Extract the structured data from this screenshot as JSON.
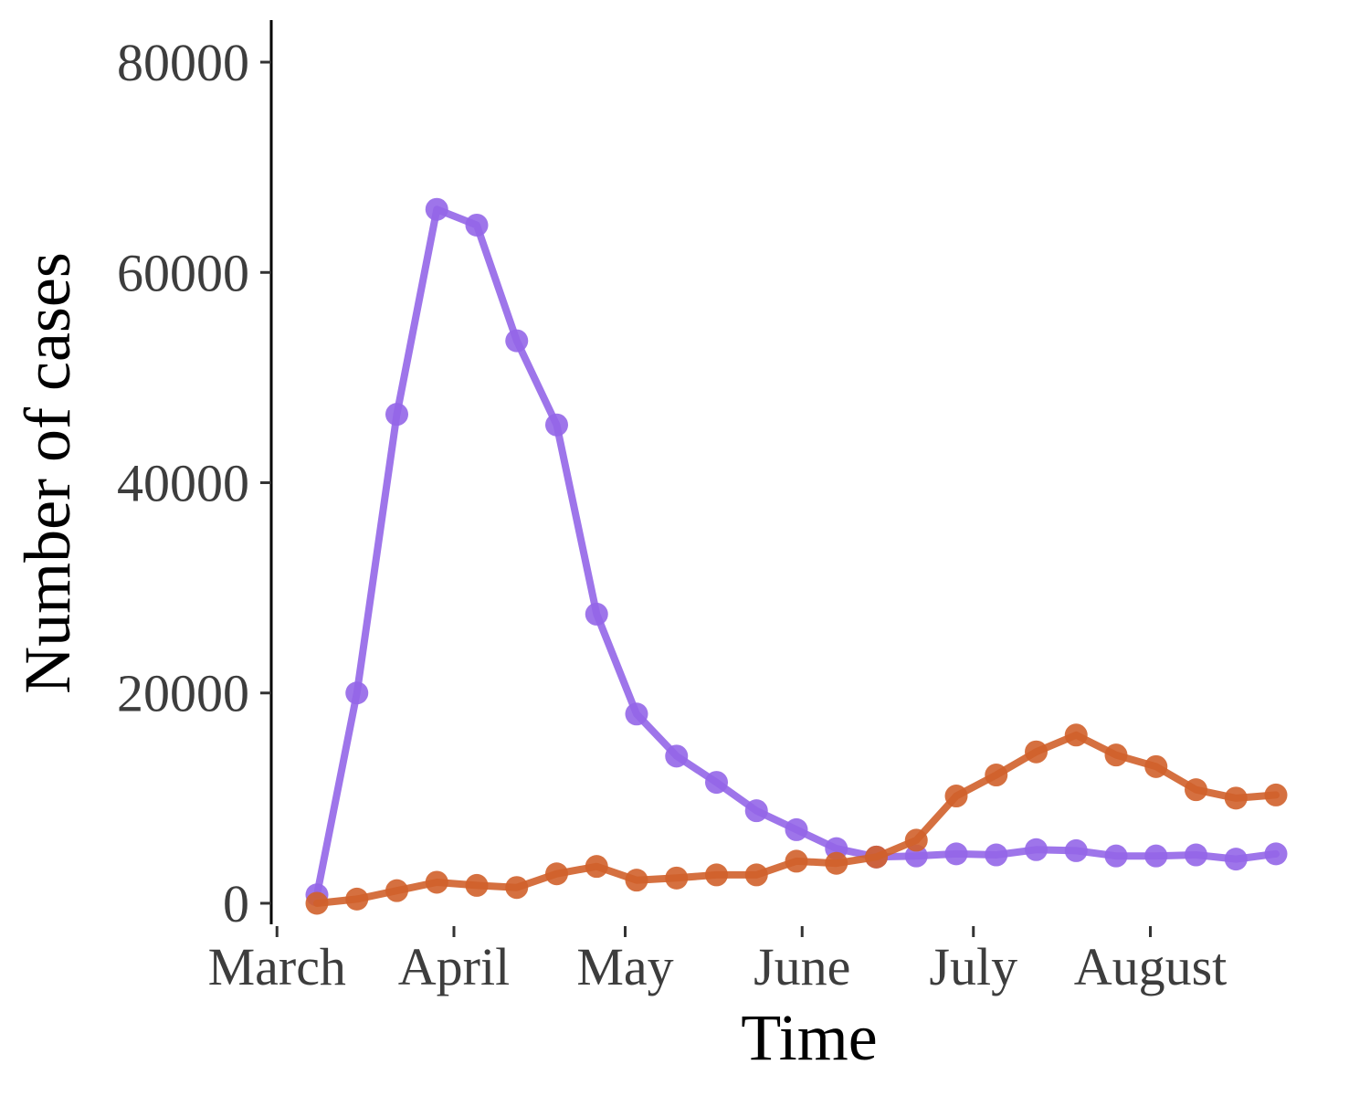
{
  "chart_data": {
    "type": "line",
    "title": "",
    "xlabel": "Time",
    "ylabel": "Number of cases",
    "x_axis": {
      "type": "date",
      "range": [
        "2020-02-29",
        "2020-08-31"
      ],
      "ticks": [
        {
          "label": "March",
          "date": "2020-03-01"
        },
        {
          "label": "April",
          "date": "2020-04-01"
        },
        {
          "label": "May",
          "date": "2020-05-01"
        },
        {
          "label": "June",
          "date": "2020-06-01"
        },
        {
          "label": "July",
          "date": "2020-07-01"
        },
        {
          "label": "August",
          "date": "2020-08-01"
        }
      ]
    },
    "y_axis": {
      "range": [
        -2000,
        84000
      ],
      "ticks": [
        0,
        20000,
        40000,
        60000,
        80000
      ]
    },
    "grid": false,
    "legend": "none",
    "x": [
      "2020-03-08",
      "2020-03-15",
      "2020-03-22",
      "2020-03-29",
      "2020-04-05",
      "2020-04-12",
      "2020-04-19",
      "2020-04-26",
      "2020-05-03",
      "2020-05-10",
      "2020-05-17",
      "2020-05-24",
      "2020-05-31",
      "2020-06-07",
      "2020-06-14",
      "2020-06-21",
      "2020-06-28",
      "2020-07-05",
      "2020-07-12",
      "2020-07-19",
      "2020-07-26",
      "2020-08-02",
      "2020-08-09",
      "2020-08-16",
      "2020-08-23"
    ],
    "series": [
      {
        "color": "#9466e8",
        "values": [
          800,
          20000,
          46500,
          66000,
          64500,
          53500,
          45500,
          27500,
          18000,
          14000,
          11500,
          8800,
          7000,
          5200,
          4400,
          4500,
          4700,
          4600,
          5100,
          5000,
          4500,
          4500,
          4600,
          4200,
          4700
        ]
      },
      {
        "color": "#d0612b",
        "values": [
          0,
          400,
          1200,
          2000,
          1700,
          1500,
          2800,
          3500,
          2200,
          2400,
          2700,
          2700,
          4000,
          3800,
          4400,
          6000,
          10200,
          12200,
          14400,
          16000,
          14100,
          13000,
          10800,
          10000,
          10300
        ]
      }
    ]
  }
}
